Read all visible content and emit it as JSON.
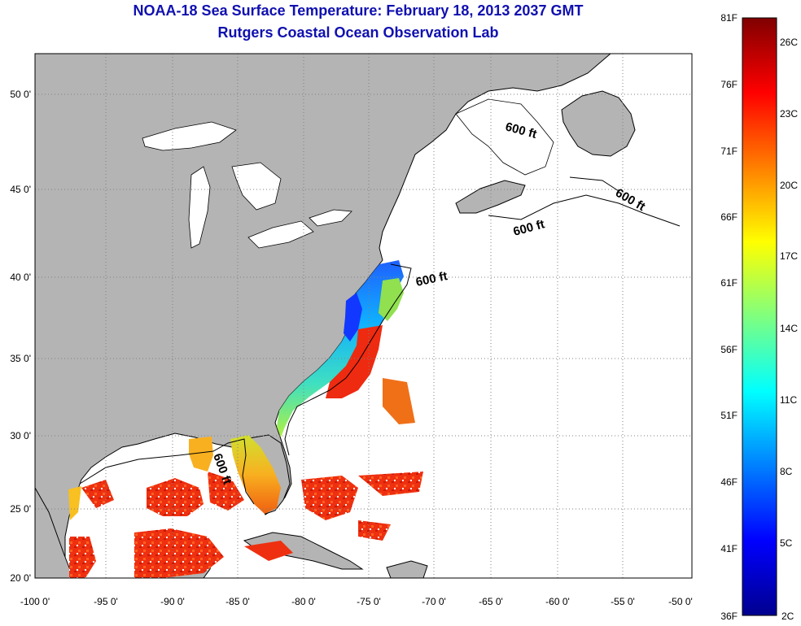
{
  "title_line1": "NOAA-18 Sea Surface Temperature:  February 18, 2013 2037 GMT",
  "title_line2": "Rutgers Coastal Ocean Observation Lab",
  "map": {
    "lon_ticks": [
      "-100 0'",
      "-95 0'",
      "-90 0'",
      "-85 0'",
      "-80 0'",
      "-75 0'",
      "-70 0'",
      "-65 0'",
      "-60 0'",
      "-55 0'",
      "-50 0'"
    ],
    "lat_ticks": [
      "50 0'",
      "45 0'",
      "40 0'",
      "35 0'",
      "30 0'",
      "25 0'",
      "20 0'"
    ],
    "contour_label": "600 ft",
    "land_color": "#b4b4b4",
    "water_color": "#ffffff",
    "coast_color": "#000000",
    "grid_style": "dotted"
  },
  "colorbar": {
    "fahrenheit_labels": [
      "81F",
      "76F",
      "71F",
      "66F",
      "61F",
      "56F",
      "51F",
      "46F",
      "41F",
      "36F"
    ],
    "celsius_labels": [
      "26C",
      "23C",
      "20C",
      "17C",
      "14C",
      "11C",
      "8C",
      "5C",
      "2C"
    ],
    "colormap": "jet"
  }
}
